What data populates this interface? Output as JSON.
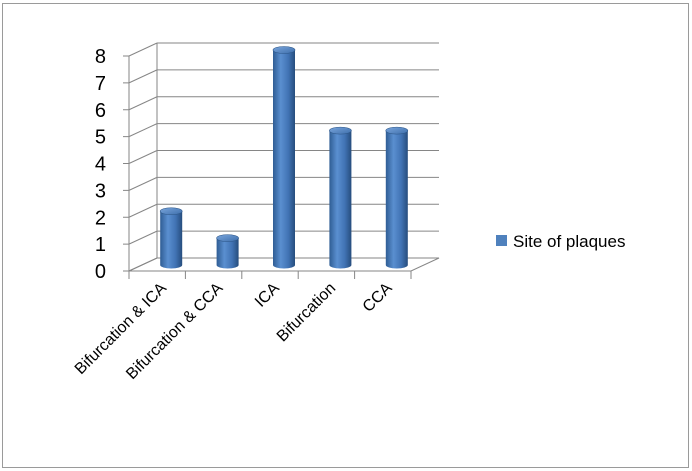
{
  "chart_data": {
    "type": "bar",
    "style": "3d-cylinder",
    "categories": [
      "Bifurcation & ICA",
      "Bifurcation & CCA",
      "ICA",
      "Bifurcation",
      "CCA"
    ],
    "series": [
      {
        "name": "Site of plaques",
        "values": [
          2,
          1,
          8,
          5,
          5
        ],
        "color": "#4f81bd"
      }
    ],
    "yticks": [
      "0",
      "1",
      "2",
      "3",
      "4",
      "5",
      "6",
      "7",
      "8"
    ],
    "ylim": [
      0,
      8
    ],
    "grid": true,
    "legend": "right"
  }
}
